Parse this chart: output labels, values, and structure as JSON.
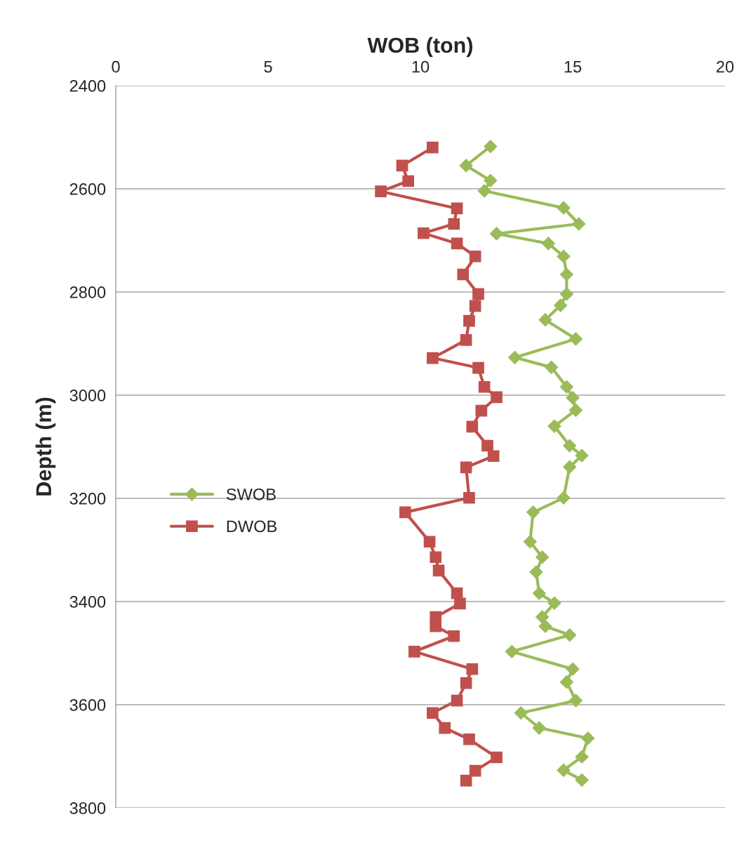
{
  "chart_data": {
    "type": "line",
    "xlabel": "WOB (ton)",
    "ylabel": "Depth (m)",
    "xlim": [
      0,
      20
    ],
    "xticks": [
      0,
      5,
      10,
      15,
      20
    ],
    "ylim": [
      3800,
      2400
    ],
    "yticks": [
      2400,
      2600,
      2800,
      3000,
      3200,
      3400,
      3600,
      3800
    ],
    "grid": "y",
    "legend": "left",
    "line_style": "solid",
    "series": [
      {
        "name": "SWOB",
        "color": "#9bbb59",
        "marker": "diamond",
        "x": [
          12.3,
          11.5,
          12.3,
          12.1,
          14.7,
          15.2,
          12.5,
          14.2,
          14.7,
          14.8,
          14.8,
          14.6,
          14.1,
          15.1,
          13.1,
          14.3,
          14.8,
          15.0,
          15.1,
          14.4,
          14.9,
          15.3,
          14.9,
          14.7,
          13.7,
          13.6,
          14.0,
          13.8,
          13.9,
          14.4,
          14.0,
          14.1,
          14.9,
          13.0,
          15.0,
          14.8,
          15.1,
          13.3,
          13.9,
          15.5,
          15.3,
          14.7,
          15.3
        ],
        "values": [
          2518,
          2555,
          2584,
          2604,
          2637,
          2668,
          2687,
          2706,
          2731,
          2766,
          2804,
          2826,
          2854,
          2891,
          2927,
          2946,
          2984,
          3005,
          3029,
          3060,
          3098,
          3117,
          3139,
          3199,
          3227,
          3284,
          3314,
          3343,
          3384,
          3403,
          3430,
          3448,
          3465,
          3497,
          3531,
          3556,
          3592,
          3616,
          3645,
          3665,
          3701,
          3727,
          3746
        ]
      },
      {
        "name": "DWOB",
        "color": "#c0504d",
        "marker": "square",
        "x": [
          10.4,
          9.4,
          9.6,
          8.7,
          11.2,
          11.1,
          10.1,
          11.2,
          11.8,
          11.4,
          11.9,
          11.8,
          11.6,
          11.5,
          10.4,
          11.9,
          12.1,
          12.5,
          12.0,
          11.7,
          12.2,
          12.4,
          11.5,
          11.6,
          9.5,
          10.3,
          10.5,
          10.6,
          11.2,
          11.3,
          10.5,
          10.5,
          11.1,
          9.8,
          11.7,
          11.5,
          11.2,
          10.4,
          10.8,
          11.6,
          12.5,
          11.8,
          11.5
        ],
        "values": [
          2520,
          2555,
          2585,
          2605,
          2638,
          2668,
          2686,
          2706,
          2731,
          2766,
          2804,
          2827,
          2856,
          2893,
          2928,
          2947,
          2984,
          3004,
          3030,
          3061,
          3098,
          3118,
          3140,
          3199,
          3227,
          3284,
          3314,
          3340,
          3384,
          3404,
          3430,
          3448,
          3467,
          3497,
          3531,
          3558,
          3592,
          3616,
          3645,
          3667,
          3702,
          3728,
          3747
        ]
      }
    ]
  }
}
